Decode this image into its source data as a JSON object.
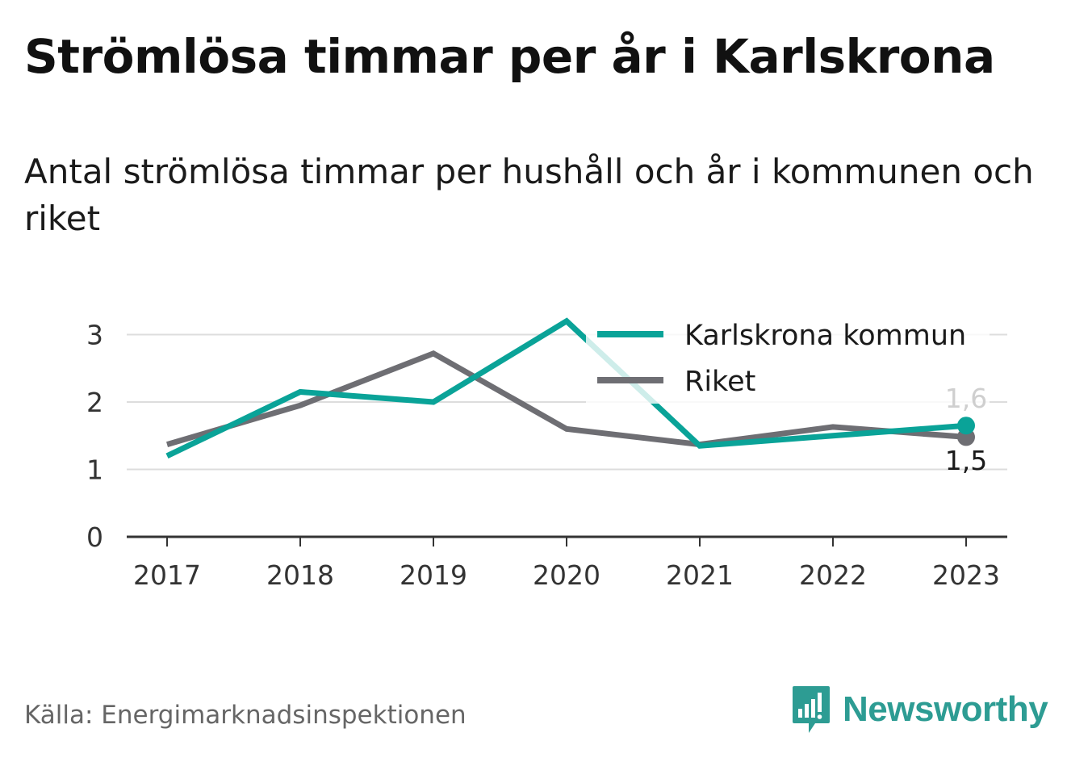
{
  "header": {
    "title": "Strömlösa timmar per år i Karlskrona",
    "subtitle": "Antal strömlösa timmar per hushåll och år i kommunen och riket"
  },
  "footer": {
    "source": "Källa: Energimarknadsinspektionen",
    "brand": "Newsworthy",
    "brand_icon": "bar-chart-badge-icon"
  },
  "colors": {
    "karlskrona": "#0aa398",
    "riket": "#6e6e73",
    "grid": "#dddddd",
    "axis": "#333333",
    "brand": "#2d9c93"
  },
  "chart_data": {
    "type": "line",
    "categories": [
      "2017",
      "2018",
      "2019",
      "2020",
      "2021",
      "2022",
      "2023"
    ],
    "series": [
      {
        "name": "Karlskrona kommun",
        "values": [
          1.2,
          2.15,
          2.0,
          3.2,
          1.35,
          1.5,
          1.65
        ],
        "end_label": "1,6"
      },
      {
        "name": "Riket",
        "values": [
          1.37,
          1.95,
          2.72,
          1.6,
          1.37,
          1.63,
          1.48
        ],
        "end_label": "1,5"
      }
    ],
    "y_ticks": [
      "0",
      "1",
      "2",
      "3"
    ],
    "ylim": [
      0,
      3.4
    ],
    "grid": true,
    "legend_position": "top-right"
  }
}
